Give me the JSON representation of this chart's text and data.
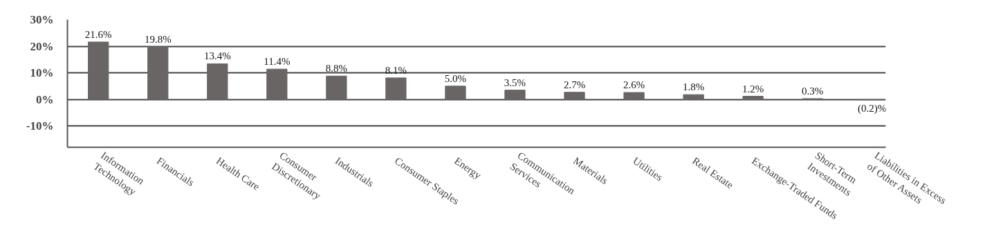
{
  "chart_data": {
    "type": "bar",
    "categories": [
      "Information\nTechnology",
      "Financials",
      "Health Care",
      "Consumer\nDiscretionary",
      "Industrials",
      "Consumer Staples",
      "Energy",
      "Communication\nServices",
      "Materials",
      "Utilities",
      "Real Estate",
      "Exchange-Traded Funds",
      "Short-Term\nInvestments",
      "Liabilities in Excess\nof Other Assets"
    ],
    "values": [
      21.6,
      19.8,
      13.4,
      11.4,
      8.8,
      8.1,
      5.0,
      3.5,
      2.7,
      2.6,
      1.8,
      1.2,
      0.3,
      -0.2
    ],
    "value_labels": [
      "21.6%",
      "19.8%",
      "13.4%",
      "11.4%",
      "8.8%",
      "8.1%",
      "5.0%",
      "3.5%",
      "2.7%",
      "2.6%",
      "1.8%",
      "1.2%",
      "0.3%",
      "(0.2)%"
    ],
    "color": "#696565",
    "ylim": [
      -18,
      30
    ],
    "yticks": [
      {
        "value": 30,
        "label": "30%"
      },
      {
        "value": 20,
        "label": "20%"
      },
      {
        "value": 10,
        "label": "10%"
      },
      {
        "value": 0,
        "label": "0%"
      },
      {
        "value": -10,
        "label": "-10%"
      }
    ],
    "grid": "y"
  }
}
